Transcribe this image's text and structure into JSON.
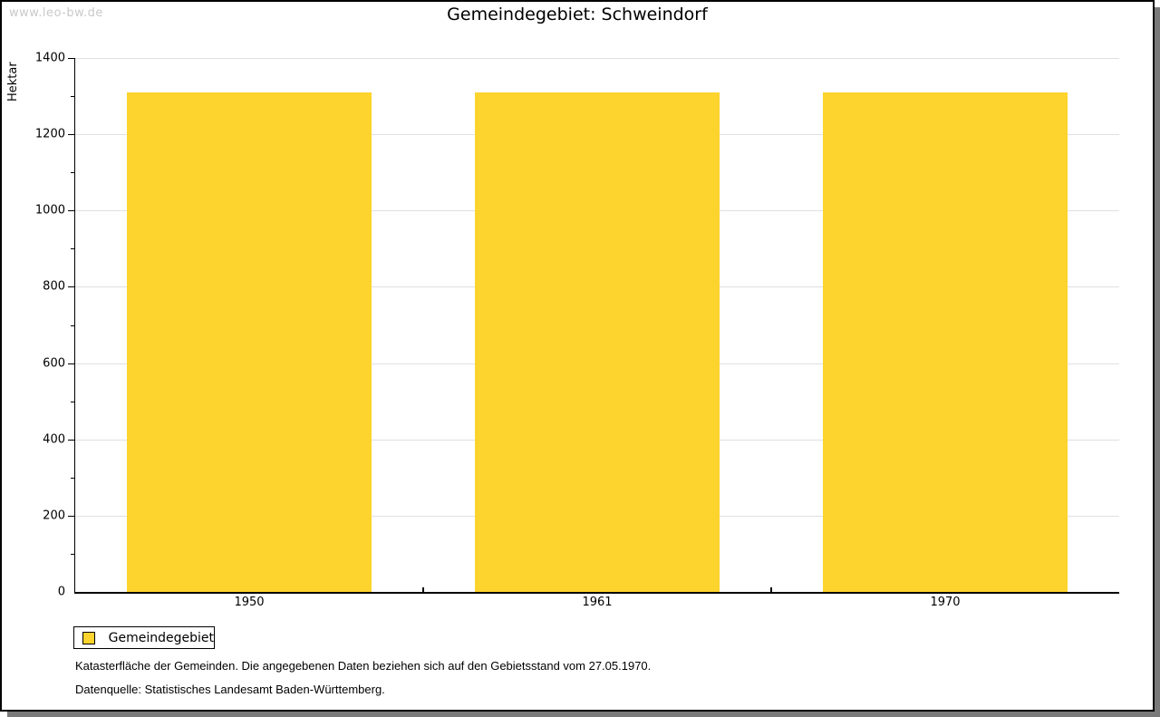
{
  "watermark": "www.leo-bw.de",
  "title": "Gemeindegebiet: Schweindorf",
  "legend": {
    "label": "Gemeindegebiet",
    "swatch_color": "#fdd32d"
  },
  "notes": [
    "Katasterfläche der Gemeinden. Die angegebenen Daten beziehen sich auf den Gebietsstand vom 27.05.1970.",
    "Datenquelle: Statistisches Landesamt Baden-Württemberg."
  ],
  "colors": {
    "bar": "#fdd32d",
    "gridline": "#e0e0e0",
    "axis": "#000000",
    "watermark": "#c9c9c9",
    "shadow": "#7a7a7a"
  },
  "chart_data": {
    "type": "bar",
    "title": "Gemeindegebiet: Schweindorf",
    "categories": [
      "1950",
      "1961",
      "1970"
    ],
    "series": [
      {
        "name": "Gemeindegebiet",
        "values": [
          1310,
          1310,
          1310
        ],
        "color": "#fdd32d"
      }
    ],
    "xlabel": "",
    "ylabel": "Hektar",
    "ylim": [
      0,
      1400
    ],
    "y_major_step": 200,
    "y_minor_step": 100,
    "y_tick_labels": [
      "0",
      "200",
      "400",
      "600",
      "800",
      "1000",
      "1200",
      "1400"
    ],
    "grid": true,
    "legend_position": "bottom-left",
    "unit": "Hektar"
  }
}
